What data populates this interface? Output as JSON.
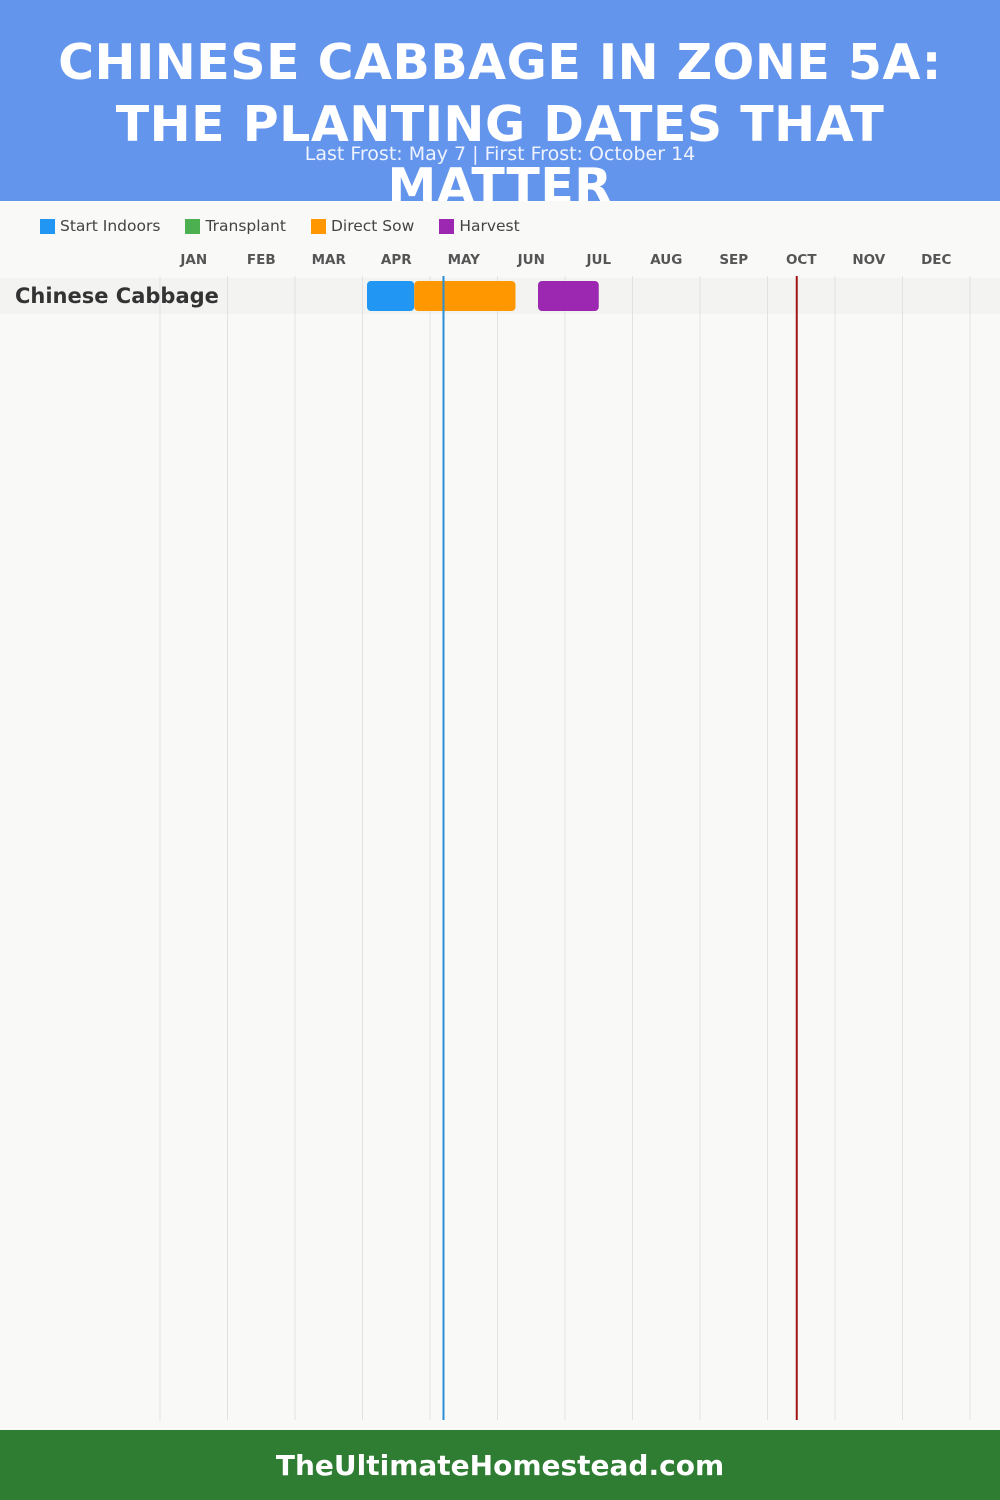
{
  "header": {
    "title": "CHINESE CABBAGE IN ZONE 5A: THE PLANTING DATES THAT MATTER",
    "subtitle": "Last Frost: May 7 | First Frost: October 14"
  },
  "legend": [
    {
      "label": "Start Indoors",
      "color": "#2196f3"
    },
    {
      "label": "Transplant",
      "color": "#4caf50"
    },
    {
      "label": "Direct Sow",
      "color": "#ff9800"
    },
    {
      "label": "Harvest",
      "color": "#9c27b0"
    }
  ],
  "chart_data": {
    "type": "gantt",
    "months": [
      "JAN",
      "FEB",
      "MAR",
      "APR",
      "MAY",
      "JUN",
      "JUL",
      "AUG",
      "SEP",
      "OCT",
      "NOV",
      "DEC"
    ],
    "frost_lines": [
      {
        "date": "May 7",
        "month_index": 4,
        "day": 7,
        "color": "#2a8fd6"
      },
      {
        "date": "October 14",
        "month_index": 9,
        "day": 14,
        "color": "#a31515"
      }
    ],
    "crops": [
      {
        "name": "Chinese Cabbage",
        "bars": [
          {
            "type": "Start Indoors",
            "start": [
              3,
              3
            ],
            "end": [
              3,
              24
            ],
            "color": "#2196f3"
          },
          {
            "type": "Direct Sow",
            "start": [
              3,
              24
            ],
            "end": [
              5,
              9
            ],
            "color": "#ff9800"
          },
          {
            "type": "Harvest",
            "start": [
              5,
              19
            ],
            "end": [
              6,
              16
            ],
            "color": "#9c27b0"
          }
        ]
      }
    ]
  },
  "footer": {
    "text": "TheUltimateHomestead.com"
  }
}
